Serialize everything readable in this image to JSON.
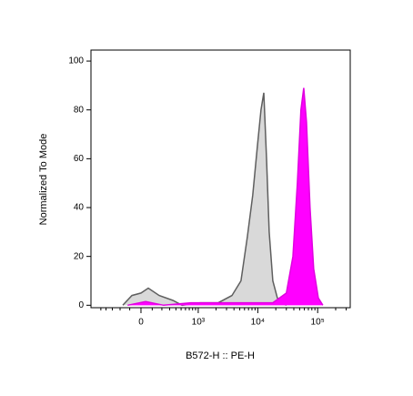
{
  "chart_data": {
    "type": "histogram",
    "x_label": "B572-H :: PE-H",
    "y_label": "Normalized To Mode",
    "x_scale": "biexponential",
    "xlim": [
      -750,
      350000
    ],
    "ylim": [
      -1,
      104.5
    ],
    "xticks": [
      {
        "value": 0,
        "label": "0"
      },
      {
        "value": 1000,
        "label": "10³"
      },
      {
        "value": 10000,
        "label": "10⁴"
      },
      {
        "value": 100000,
        "label": "10⁵"
      }
    ],
    "xminor_ticks": [
      -500,
      -400,
      -300,
      -200,
      -100,
      100,
      200,
      300,
      400,
      500,
      600,
      700,
      800,
      900,
      2000,
      3000,
      4000,
      5000,
      6000,
      7000,
      8000,
      9000,
      20000,
      30000,
      40000,
      50000,
      60000,
      70000,
      80000,
      90000,
      200000,
      300000
    ],
    "yticks": [
      0,
      20,
      40,
      60,
      80,
      100
    ],
    "series": [
      {
        "color": "#d9d9d9",
        "edge_color": "#5f5f5f",
        "x": [
          -170,
          -80,
          0,
          64,
          170,
          350,
          520,
          1080,
          2180,
          3700,
          5240,
          6700,
          8240,
          9830,
          11300,
          12600,
          14000,
          15500,
          17800,
          21200,
          25300,
          30000
        ],
        "values": [
          0,
          4,
          5,
          7,
          4,
          2,
          0,
          1,
          1,
          4,
          10,
          28,
          45,
          65,
          80,
          87,
          60,
          30,
          10,
          3,
          1,
          0
        ]
      },
      {
        "color": "#ff00ff",
        "edge_color": "#e000e0",
        "x": [
          -120,
          40,
          220,
          750,
          3090,
          17800,
          30000,
          38600,
          45800,
          52600,
          58500,
          65000,
          74600,
          85800,
          102400,
          121900
        ],
        "values": [
          0,
          1.5,
          0,
          1,
          1,
          1,
          5,
          20,
          50,
          80,
          89,
          75,
          40,
          15,
          3,
          0
        ]
      }
    ]
  }
}
